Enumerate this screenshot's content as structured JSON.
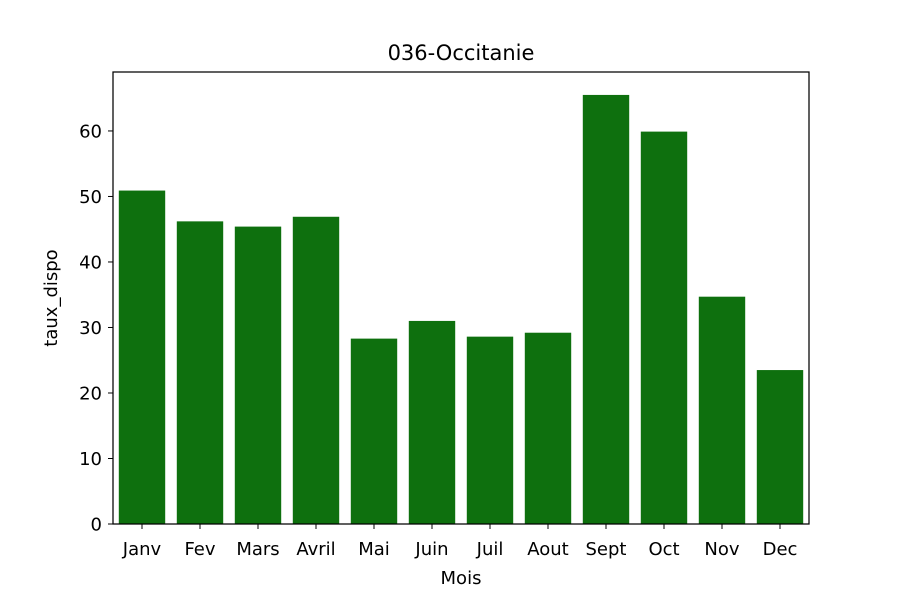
{
  "chart_data": {
    "type": "bar",
    "title": "036-Occitanie",
    "xlabel": "Mois",
    "ylabel": "taux_dispo",
    "categories": [
      "Janv",
      "Fev",
      "Mars",
      "Avril",
      "Mai",
      "Juin",
      "Juil",
      "Aout",
      "Sept",
      "Oct",
      "Nov",
      "Dec"
    ],
    "values": [
      50.9,
      46.2,
      45.4,
      46.9,
      28.3,
      31.0,
      28.6,
      29.2,
      65.5,
      59.9,
      34.7,
      23.5
    ],
    "ylim": [
      0,
      69
    ],
    "yticks": [
      "0",
      "10",
      "20",
      "30",
      "40",
      "50",
      "60"
    ],
    "grid": false,
    "bar_color": "#0e700e"
  }
}
